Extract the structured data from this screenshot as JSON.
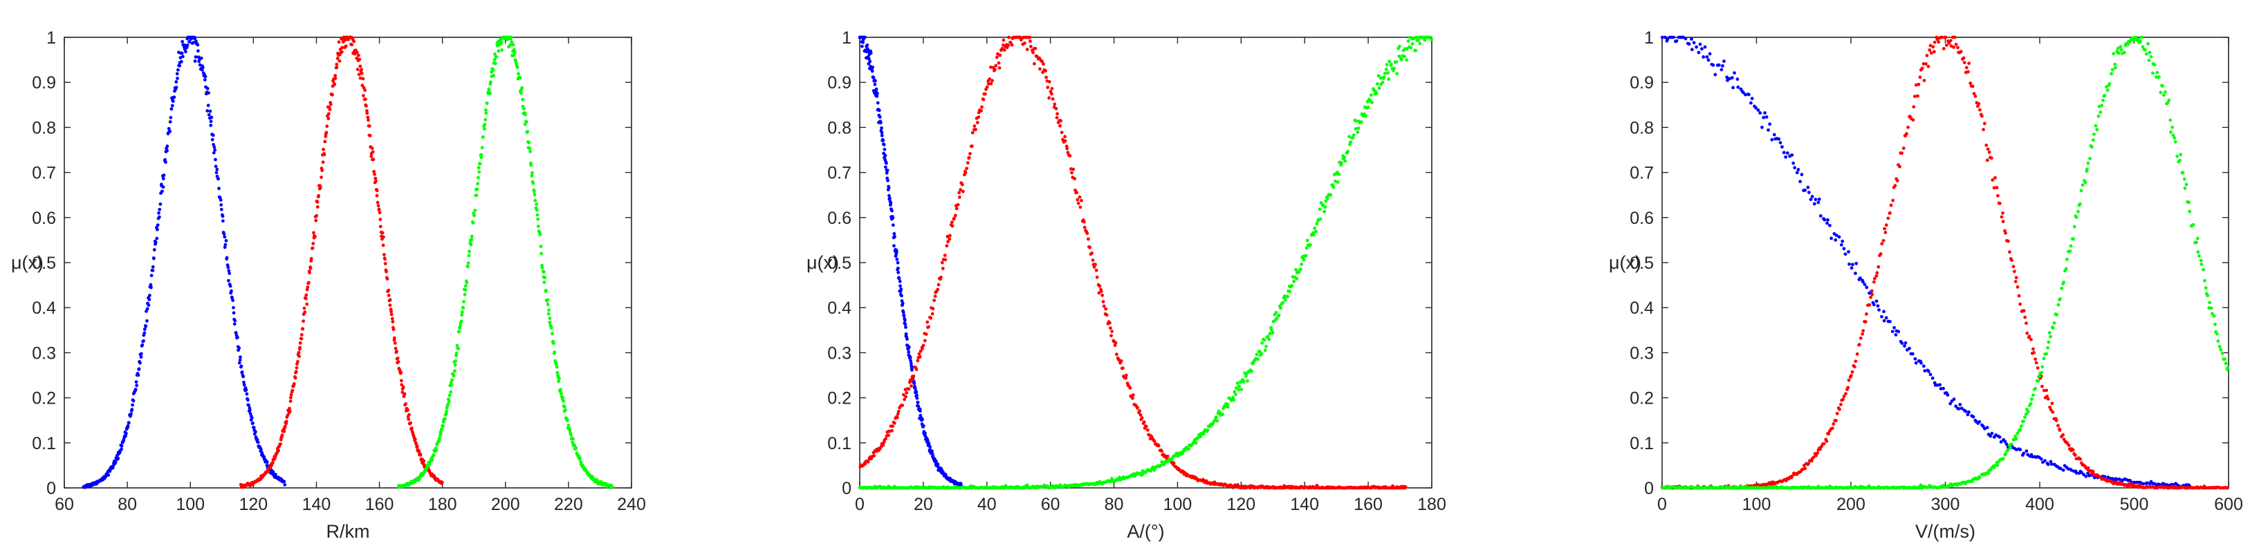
{
  "chart_data": [
    {
      "type": "scatter",
      "xlabel": "R/km",
      "ylabel": "μ(x)",
      "xlim": [
        60,
        240
      ],
      "ylim": [
        0,
        1
      ],
      "xticks": [
        "60",
        "80",
        "100",
        "120",
        "140",
        "160",
        "180",
        "200",
        "220",
        "240"
      ],
      "yticks": [
        "0",
        "0.1",
        "0.2",
        "0.3",
        "0.4",
        "0.5",
        "0.6",
        "0.7",
        "0.8",
        "0.9",
        "1"
      ],
      "grid": false,
      "series": [
        {
          "color": "#0000ff",
          "shape": "gaussian",
          "center": 100,
          "sigma": 10,
          "x_range": [
            66,
            130
          ],
          "points": 420
        },
        {
          "color": "#ff0000",
          "shape": "gaussian",
          "center": 150,
          "sigma": 10,
          "x_range": [
            116,
            180
          ],
          "points": 420
        },
        {
          "color": "#00ff00",
          "shape": "gaussian",
          "center": 200,
          "sigma": 10,
          "x_range": [
            166,
            234
          ],
          "points": 420
        }
      ]
    },
    {
      "type": "scatter",
      "xlabel": "A/(°)",
      "ylabel": "μ(x)",
      "xlim": [
        0,
        180
      ],
      "ylim": [
        0,
        1
      ],
      "xticks": [
        "0",
        "20",
        "40",
        "60",
        "80",
        "100",
        "120",
        "140",
        "160",
        "180"
      ],
      "yticks": [
        "0",
        "0.1",
        "0.2",
        "0.3",
        "0.4",
        "0.5",
        "0.6",
        "0.7",
        "0.8",
        "0.9",
        "1"
      ],
      "grid": false,
      "series": [
        {
          "color": "#0000ff",
          "shape": "gaussian",
          "center": 0,
          "sigma": 10,
          "x_range": [
            0,
            32
          ],
          "points": 320
        },
        {
          "color": "#ff0000",
          "shape": "gaussian",
          "center": 50,
          "sigma": 20,
          "x_range": [
            0,
            172
          ],
          "points": 620
        },
        {
          "color": "#00ff00",
          "shape": "gaussian",
          "center": 180,
          "sigma": 35,
          "x_range": [
            0,
            180
          ],
          "points": 620
        }
      ]
    },
    {
      "type": "scatter",
      "xlabel": "V/(m/s)",
      "ylabel": "μ(x)",
      "xlim": [
        0,
        600
      ],
      "ylim": [
        0,
        1
      ],
      "xticks": [
        "0",
        "100",
        "200",
        "300",
        "400",
        "500",
        "600"
      ],
      "yticks": [
        "0",
        "0.1",
        "0.2",
        "0.3",
        "0.4",
        "0.5",
        "0.6",
        "0.7",
        "0.8",
        "0.9",
        "1"
      ],
      "grid": false,
      "series": [
        {
          "color": "#0000ff",
          "shape": "gaussian",
          "center": 0,
          "sigma": 170,
          "x_range": [
            0,
            560
          ],
          "points": 300
        },
        {
          "color": "#ff0000",
          "shape": "gaussian",
          "center": 300,
          "sigma": 60,
          "x_range": [
            0,
            600
          ],
          "points": 480
        },
        {
          "color": "#00ff00",
          "shape": "gaussian",
          "center": 500,
          "sigma": 60,
          "x_range": [
            0,
            600
          ],
          "points": 480
        }
      ]
    }
  ]
}
